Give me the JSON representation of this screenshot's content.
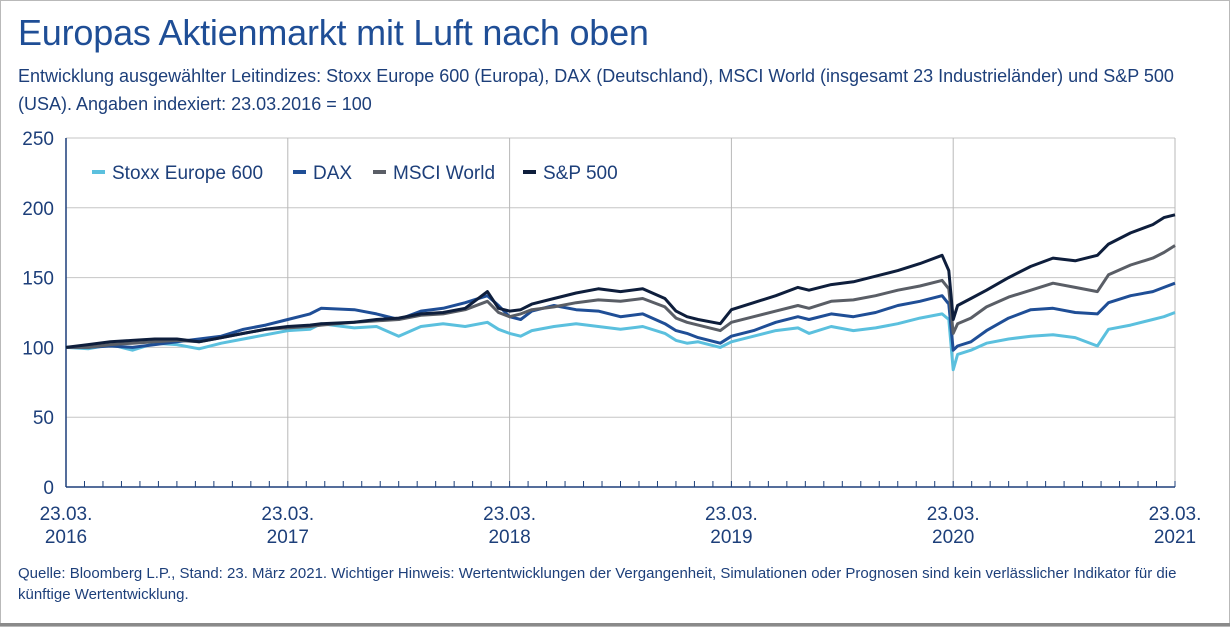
{
  "title": "Europas Aktienmarkt mit Luft nach oben",
  "subtitle": "Entwicklung ausgewählter Leitindizes: Stoxx Europe 600 (Europa), DAX (Deutschland), MSCI World (insgesamt 23 Industrieländer) und S&P 500 (USA). Angaben indexiert: 23.03.2016 = 100",
  "source": "Quelle: Bloomberg L.P., Stand: 23. März 2021. Wichtiger Hinweis: Wertentwicklungen der Vergangenheit, Simulationen oder Prognosen sind kein verlässlicher Indikator für die künftige Wertentwicklung.",
  "chart_data": {
    "type": "line",
    "title": "Europas Aktienmarkt mit Luft nach oben",
    "xlabel": "",
    "ylabel": "",
    "ylim": [
      0,
      250
    ],
    "yticks": [
      0,
      50,
      100,
      150,
      200,
      250
    ],
    "xlim": [
      2016.0,
      2021.0
    ],
    "xticks": [
      {
        "x": 2016,
        "line1": "23.03.",
        "line2": "2016"
      },
      {
        "x": 2017,
        "line1": "23.03.",
        "line2": "2017"
      },
      {
        "x": 2018,
        "line1": "23.03.",
        "line2": "2018"
      },
      {
        "x": 2019,
        "line1": "23.03.",
        "line2": "2019"
      },
      {
        "x": 2020,
        "line1": "23.03.",
        "line2": "2020"
      },
      {
        "x": 2021,
        "line1": "23.03.",
        "line2": "2021"
      }
    ],
    "grid": true,
    "legend": "top-left",
    "series": [
      {
        "name": "Stoxx  Europe 600",
        "color": "#5bc0de",
        "points": [
          [
            2016.0,
            100
          ],
          [
            2016.1,
            99
          ],
          [
            2016.2,
            102
          ],
          [
            2016.3,
            98
          ],
          [
            2016.4,
            103
          ],
          [
            2016.5,
            102
          ],
          [
            2016.6,
            99
          ],
          [
            2016.7,
            103
          ],
          [
            2016.8,
            106
          ],
          [
            2016.9,
            109
          ],
          [
            2017.0,
            112
          ],
          [
            2017.1,
            113
          ],
          [
            2017.15,
            117
          ],
          [
            2017.3,
            114
          ],
          [
            2017.4,
            115
          ],
          [
            2017.5,
            108
          ],
          [
            2017.6,
            115
          ],
          [
            2017.7,
            117
          ],
          [
            2017.8,
            115
          ],
          [
            2017.9,
            118
          ],
          [
            2017.95,
            113
          ],
          [
            2018.0,
            110
          ],
          [
            2018.05,
            108
          ],
          [
            2018.1,
            112
          ],
          [
            2018.2,
            115
          ],
          [
            2018.3,
            117
          ],
          [
            2018.4,
            115
          ],
          [
            2018.5,
            113
          ],
          [
            2018.6,
            115
          ],
          [
            2018.7,
            110
          ],
          [
            2018.75,
            105
          ],
          [
            2018.8,
            103
          ],
          [
            2018.85,
            104
          ],
          [
            2018.95,
            100
          ],
          [
            2019.0,
            104
          ],
          [
            2019.1,
            108
          ],
          [
            2019.2,
            112
          ],
          [
            2019.3,
            114
          ],
          [
            2019.35,
            110
          ],
          [
            2019.45,
            115
          ],
          [
            2019.55,
            112
          ],
          [
            2019.65,
            114
          ],
          [
            2019.75,
            117
          ],
          [
            2019.85,
            121
          ],
          [
            2019.95,
            124
          ],
          [
            2019.98,
            120
          ],
          [
            2020.0,
            84
          ],
          [
            2020.02,
            95
          ],
          [
            2020.08,
            98
          ],
          [
            2020.15,
            103
          ],
          [
            2020.25,
            106
          ],
          [
            2020.35,
            108
          ],
          [
            2020.45,
            109
          ],
          [
            2020.55,
            107
          ],
          [
            2020.65,
            101
          ],
          [
            2020.7,
            113
          ],
          [
            2020.8,
            116
          ],
          [
            2020.9,
            120
          ],
          [
            2020.95,
            122
          ],
          [
            2021.0,
            125
          ]
        ]
      },
      {
        "name": "DAX",
        "color": "#1f4e96",
        "points": [
          [
            2016.0,
            100
          ],
          [
            2016.1,
            100
          ],
          [
            2016.2,
            101
          ],
          [
            2016.3,
            100
          ],
          [
            2016.4,
            102
          ],
          [
            2016.5,
            104
          ],
          [
            2016.6,
            106
          ],
          [
            2016.7,
            108
          ],
          [
            2016.8,
            113
          ],
          [
            2016.9,
            116
          ],
          [
            2017.0,
            120
          ],
          [
            2017.1,
            124
          ],
          [
            2017.15,
            128
          ],
          [
            2017.3,
            127
          ],
          [
            2017.4,
            124
          ],
          [
            2017.5,
            120
          ],
          [
            2017.6,
            126
          ],
          [
            2017.7,
            128
          ],
          [
            2017.8,
            132
          ],
          [
            2017.9,
            137
          ],
          [
            2017.95,
            130
          ],
          [
            2018.0,
            122
          ],
          [
            2018.05,
            120
          ],
          [
            2018.1,
            126
          ],
          [
            2018.2,
            130
          ],
          [
            2018.3,
            127
          ],
          [
            2018.4,
            126
          ],
          [
            2018.5,
            122
          ],
          [
            2018.6,
            124
          ],
          [
            2018.7,
            117
          ],
          [
            2018.75,
            112
          ],
          [
            2018.8,
            110
          ],
          [
            2018.85,
            107
          ],
          [
            2018.95,
            103
          ],
          [
            2019.0,
            108
          ],
          [
            2019.1,
            112
          ],
          [
            2019.2,
            118
          ],
          [
            2019.3,
            122
          ],
          [
            2019.35,
            120
          ],
          [
            2019.45,
            124
          ],
          [
            2019.55,
            122
          ],
          [
            2019.65,
            125
          ],
          [
            2019.75,
            130
          ],
          [
            2019.85,
            133
          ],
          [
            2019.95,
            137
          ],
          [
            2019.98,
            131
          ],
          [
            2020.0,
            98
          ],
          [
            2020.02,
            101
          ],
          [
            2020.08,
            104
          ],
          [
            2020.15,
            112
          ],
          [
            2020.25,
            121
          ],
          [
            2020.35,
            127
          ],
          [
            2020.45,
            128
          ],
          [
            2020.55,
            125
          ],
          [
            2020.65,
            124
          ],
          [
            2020.7,
            132
          ],
          [
            2020.8,
            137
          ],
          [
            2020.9,
            140
          ],
          [
            2020.95,
            143
          ],
          [
            2021.0,
            146
          ]
        ]
      },
      {
        "name": "MSCI World",
        "color": "#5a5e66",
        "points": [
          [
            2016.0,
            100
          ],
          [
            2016.1,
            100
          ],
          [
            2016.2,
            102
          ],
          [
            2016.3,
            103
          ],
          [
            2016.4,
            104
          ],
          [
            2016.5,
            105
          ],
          [
            2016.6,
            104
          ],
          [
            2016.7,
            107
          ],
          [
            2016.8,
            110
          ],
          [
            2016.9,
            113
          ],
          [
            2017.0,
            114
          ],
          [
            2017.1,
            115
          ],
          [
            2017.15,
            116
          ],
          [
            2017.3,
            118
          ],
          [
            2017.4,
            119
          ],
          [
            2017.5,
            120
          ],
          [
            2017.6,
            123
          ],
          [
            2017.7,
            124
          ],
          [
            2017.8,
            127
          ],
          [
            2017.9,
            133
          ],
          [
            2017.95,
            125
          ],
          [
            2018.0,
            122
          ],
          [
            2018.05,
            124
          ],
          [
            2018.1,
            127
          ],
          [
            2018.2,
            129
          ],
          [
            2018.3,
            132
          ],
          [
            2018.4,
            134
          ],
          [
            2018.5,
            133
          ],
          [
            2018.6,
            135
          ],
          [
            2018.7,
            129
          ],
          [
            2018.75,
            121
          ],
          [
            2018.8,
            118
          ],
          [
            2018.85,
            116
          ],
          [
            2018.95,
            112
          ],
          [
            2019.0,
            118
          ],
          [
            2019.1,
            122
          ],
          [
            2019.2,
            126
          ],
          [
            2019.3,
            130
          ],
          [
            2019.35,
            128
          ],
          [
            2019.45,
            133
          ],
          [
            2019.55,
            134
          ],
          [
            2019.65,
            137
          ],
          [
            2019.75,
            141
          ],
          [
            2019.85,
            144
          ],
          [
            2019.95,
            148
          ],
          [
            2019.98,
            142
          ],
          [
            2020.0,
            110
          ],
          [
            2020.02,
            117
          ],
          [
            2020.08,
            121
          ],
          [
            2020.15,
            129
          ],
          [
            2020.25,
            136
          ],
          [
            2020.35,
            141
          ],
          [
            2020.45,
            146
          ],
          [
            2020.55,
            143
          ],
          [
            2020.65,
            140
          ],
          [
            2020.7,
            152
          ],
          [
            2020.8,
            159
          ],
          [
            2020.9,
            164
          ],
          [
            2020.95,
            168
          ],
          [
            2021.0,
            173
          ]
        ]
      },
      {
        "name": "S&P 500",
        "color": "#0e1e3c",
        "points": [
          [
            2016.0,
            100
          ],
          [
            2016.1,
            102
          ],
          [
            2016.2,
            104
          ],
          [
            2016.3,
            105
          ],
          [
            2016.4,
            106
          ],
          [
            2016.5,
            106
          ],
          [
            2016.6,
            104
          ],
          [
            2016.7,
            107
          ],
          [
            2016.8,
            110
          ],
          [
            2016.9,
            113
          ],
          [
            2017.0,
            115
          ],
          [
            2017.1,
            116
          ],
          [
            2017.15,
            117
          ],
          [
            2017.3,
            118
          ],
          [
            2017.4,
            120
          ],
          [
            2017.5,
            121
          ],
          [
            2017.6,
            124
          ],
          [
            2017.7,
            125
          ],
          [
            2017.8,
            128
          ],
          [
            2017.9,
            140
          ],
          [
            2017.95,
            128
          ],
          [
            2018.0,
            126
          ],
          [
            2018.05,
            127
          ],
          [
            2018.1,
            131
          ],
          [
            2018.2,
            135
          ],
          [
            2018.3,
            139
          ],
          [
            2018.4,
            142
          ],
          [
            2018.5,
            140
          ],
          [
            2018.6,
            142
          ],
          [
            2018.7,
            135
          ],
          [
            2018.75,
            126
          ],
          [
            2018.8,
            122
          ],
          [
            2018.85,
            120
          ],
          [
            2018.95,
            117
          ],
          [
            2019.0,
            127
          ],
          [
            2019.1,
            132
          ],
          [
            2019.2,
            137
          ],
          [
            2019.3,
            143
          ],
          [
            2019.35,
            141
          ],
          [
            2019.45,
            145
          ],
          [
            2019.55,
            147
          ],
          [
            2019.65,
            151
          ],
          [
            2019.75,
            155
          ],
          [
            2019.85,
            160
          ],
          [
            2019.95,
            166
          ],
          [
            2019.98,
            155
          ],
          [
            2020.0,
            120
          ],
          [
            2020.02,
            130
          ],
          [
            2020.08,
            135
          ],
          [
            2020.15,
            141
          ],
          [
            2020.25,
            150
          ],
          [
            2020.35,
            158
          ],
          [
            2020.45,
            164
          ],
          [
            2020.55,
            162
          ],
          [
            2020.65,
            166
          ],
          [
            2020.7,
            174
          ],
          [
            2020.8,
            182
          ],
          [
            2020.9,
            188
          ],
          [
            2020.95,
            193
          ],
          [
            2021.0,
            195
          ]
        ]
      }
    ]
  }
}
